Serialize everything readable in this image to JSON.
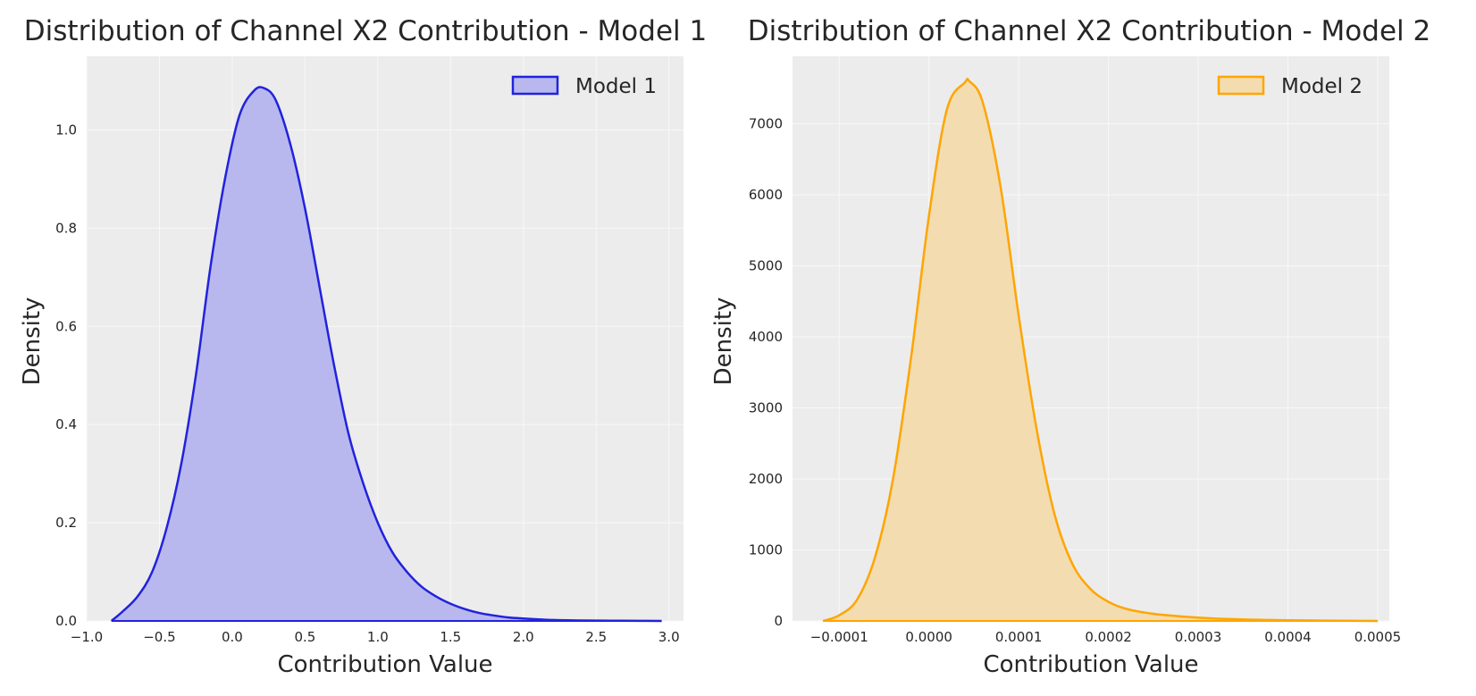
{
  "chart_data": [
    {
      "type": "area",
      "title": "Distribution of Channel X2 Contribution - Model 1",
      "xlabel": "Contribution Value",
      "ylabel": "Density",
      "xlim": [
        -1.0,
        3.1
      ],
      "ylim": [
        0,
        1.15
      ],
      "xticks": [
        -1.0,
        -0.5,
        0.0,
        0.5,
        1.0,
        1.5,
        2.0,
        2.5,
        3.0
      ],
      "xtick_labels": [
        "−1.0",
        "−0.5",
        "0.0",
        "0.5",
        "1.0",
        "1.5",
        "2.0",
        "2.5",
        "3.0"
      ],
      "yticks": [
        0.0,
        0.2,
        0.4,
        0.6,
        0.8,
        1.0
      ],
      "ytick_labels": [
        "0.0",
        "0.2",
        "0.4",
        "0.6",
        "0.8",
        "1.0"
      ],
      "grid": true,
      "legend_position": "top-right",
      "series": [
        {
          "name": "Model 1",
          "color": "#2222dd",
          "fill_color": "#b8b8ef",
          "x": [
            -0.83,
            -0.75,
            -0.65,
            -0.55,
            -0.45,
            -0.35,
            -0.25,
            -0.15,
            -0.05,
            0.05,
            0.15,
            0.22,
            0.3,
            0.4,
            0.5,
            0.6,
            0.7,
            0.8,
            0.9,
            1.0,
            1.1,
            1.2,
            1.3,
            1.4,
            1.5,
            1.6,
            1.7,
            1.8,
            1.9,
            2.0,
            2.2,
            2.4,
            2.6,
            2.8,
            2.95
          ],
          "y": [
            0.0,
            0.02,
            0.05,
            0.1,
            0.19,
            0.32,
            0.5,
            0.72,
            0.9,
            1.03,
            1.08,
            1.085,
            1.06,
            0.97,
            0.84,
            0.68,
            0.52,
            0.38,
            0.28,
            0.2,
            0.14,
            0.1,
            0.07,
            0.05,
            0.035,
            0.024,
            0.016,
            0.011,
            0.007,
            0.005,
            0.002,
            0.001,
            0.0005,
            0.0002,
            0.0
          ]
        }
      ]
    },
    {
      "type": "area",
      "title": "Distribution of Channel X2 Contribution - Model 2",
      "xlabel": "Contribution Value",
      "ylabel": "Density",
      "xlim": [
        -0.000152,
        0.000513
      ],
      "ylim": [
        0,
        7950
      ],
      "xticks": [
        -0.0001,
        0.0,
        0.0001,
        0.0002,
        0.0003,
        0.0004,
        0.0005
      ],
      "xtick_labels": [
        "−0.0001",
        "0.0000",
        "0.0001",
        "0.0002",
        "0.0003",
        "0.0004",
        "0.0005"
      ],
      "yticks": [
        0,
        1000,
        2000,
        3000,
        4000,
        5000,
        6000,
        7000
      ],
      "ytick_labels": [
        "0",
        "1000",
        "2000",
        "3000",
        "4000",
        "5000",
        "6000",
        "7000"
      ],
      "grid": true,
      "legend_position": "top-right",
      "series": [
        {
          "name": "Model 2",
          "color": "#ffa500",
          "fill_color": "#f2dcb0",
          "x": [
            -0.000118,
            -0.0001,
            -8e-05,
            -6e-05,
            -4e-05,
            -2e-05,
            0.0,
            2e-05,
            4e-05,
            4.5e-05,
            6e-05,
            8e-05,
            0.0001,
            0.00012,
            0.00014,
            0.00016,
            0.00018,
            0.0002,
            0.00022,
            0.00025,
            0.00028,
            0.00031,
            0.00034,
            0.00037,
            0.0004,
            0.00043,
            0.00046,
            0.0005
          ],
          "y": [
            0,
            80,
            300,
            900,
            2000,
            3700,
            5700,
            7200,
            7580,
            7600,
            7300,
            6100,
            4300,
            2700,
            1500,
            800,
            450,
            270,
            170,
            100,
            65,
            40,
            25,
            15,
            10,
            6,
            3,
            0
          ]
        }
      ]
    }
  ]
}
